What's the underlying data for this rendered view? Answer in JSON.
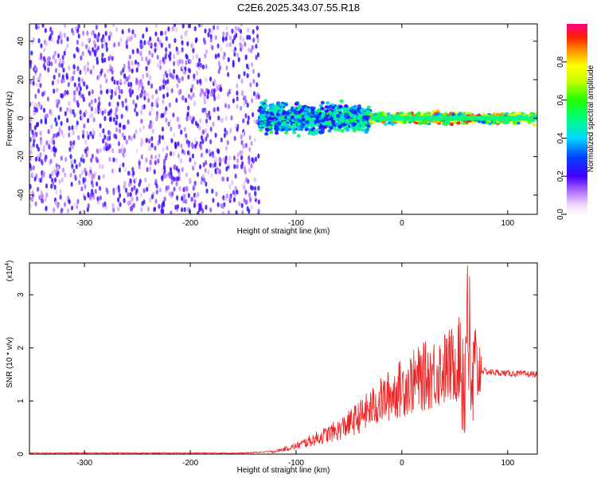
{
  "title": "C2E6.2025.343.07.55.R18",
  "chart_data": [
    {
      "type": "heatmap",
      "xlabel": "Height of straight line (km)",
      "ylabel": "Frequency (Hz)",
      "xlim": [
        -352,
        128
      ],
      "ylim": [
        -50,
        49
      ],
      "xticks": [
        -300,
        -200,
        -100,
        0,
        100
      ],
      "xtick_labels": [
        "-300",
        "-200",
        "-100",
        "0",
        "100"
      ],
      "yticks": [
        -40,
        -20,
        0,
        20,
        40
      ],
      "ytick_labels": [
        "-40",
        "-20",
        "0",
        "20",
        "40"
      ],
      "colorbar": {
        "label": "Normalized spectral amplitude",
        "range": [
          0,
          1
        ],
        "ticks": [
          0,
          0.2,
          0.4,
          0.6,
          0.8
        ],
        "tick_labels": [
          "0.0",
          "0.2",
          "0.4",
          "0.6",
          "0.8"
        ]
      },
      "regions": [
        {
          "x": [
            -352,
            -135
          ],
          "freq": [
            -50,
            49
          ],
          "amplitude": [
            0.05,
            0.25
          ],
          "description": "noise"
        },
        {
          "x": [
            -135,
            -30
          ],
          "freq": [
            -10,
            10
          ],
          "amplitude": [
            0.2,
            0.55
          ]
        },
        {
          "x": [
            -30,
            128
          ],
          "freq": [
            -4,
            4
          ],
          "amplitude": [
            0.3,
            0.95
          ]
        }
      ],
      "grid": false
    },
    {
      "type": "line",
      "xlabel": "Height of straight line (km)",
      "ylabel": "SNR (10 * v/v)",
      "y_multiplier": "(x10",
      "y_multiplier_exp": "4",
      "y_multiplier_close": ")",
      "xlim": [
        -352,
        128
      ],
      "ylim": [
        0,
        3.6
      ],
      "xticks": [
        -300,
        -200,
        -100,
        0,
        100
      ],
      "xtick_labels": [
        "-300",
        "-200",
        "-100",
        "0",
        "100"
      ],
      "yticks": [
        0,
        1,
        2,
        3
      ],
      "ytick_labels": [
        "0",
        "1",
        "2",
        "3"
      ],
      "color": "#ee2222",
      "series": [
        {
          "x": [
            -352,
            -250,
            -150,
            -120,
            -100,
            -80,
            -60,
            -40,
            -20,
            0,
            20,
            40,
            50,
            55,
            60,
            62,
            65,
            70,
            80,
            100,
            128
          ],
          "y": [
            0.02,
            0.02,
            0.02,
            0.05,
            0.15,
            0.3,
            0.45,
            0.7,
            1.0,
            1.25,
            1.45,
            1.6,
            1.7,
            1.8,
            1.4,
            3.55,
            1.0,
            1.6,
            1.55,
            1.52,
            1.5
          ]
        }
      ],
      "grid": false
    }
  ]
}
